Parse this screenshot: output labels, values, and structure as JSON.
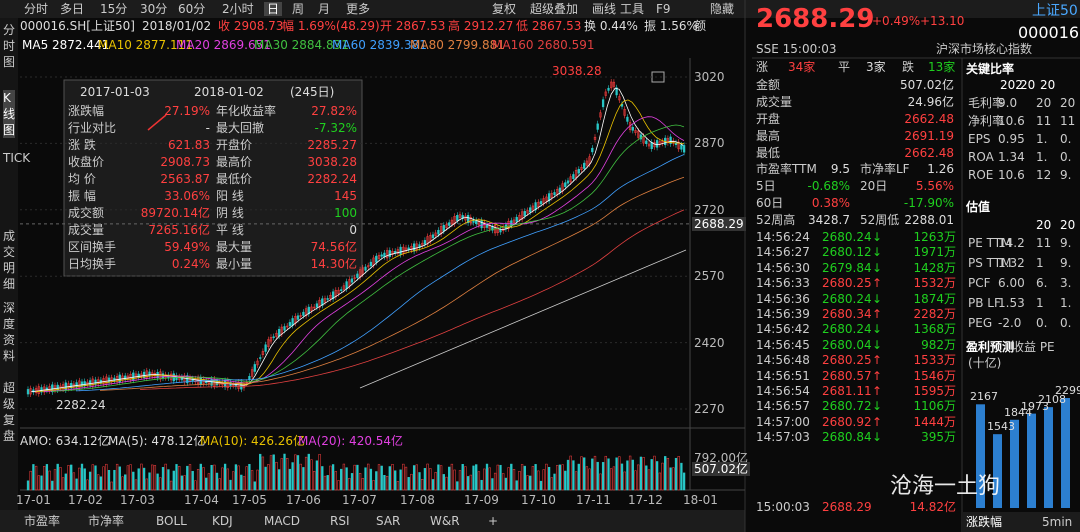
{
  "top_tabs": [
    "分时",
    "多日",
    "15分",
    "30分",
    "60分",
    "2小时",
    "日",
    "周",
    "月",
    "更多"
  ],
  "top_tools": [
    "复权",
    "超级叠加",
    "画线",
    "工具",
    "F9",
    "隐藏"
  ],
  "side_tabs": [
    "分时图",
    "K线图",
    "TICK",
    "成交明细",
    "深度资料",
    "超级复盘"
  ],
  "info": [
    "000016.SH[上证50]",
    "2018/01/02",
    "收 2908.73",
    "幅 1.69%(48.29)",
    "开 2867.53",
    "高 2912.27",
    "低 2867.53",
    "换 0.44%",
    "振 1.56%",
    "额"
  ],
  "ma": [
    "MA5 2872.441",
    "MA10 2877.111",
    "MA20 2869.651",
    "MA30 2884.831",
    "MA60 2839.381",
    "MA80 2799.881",
    "MA160 2680.591"
  ],
  "price_axis": {
    "ticks": [
      3020,
      2870,
      2720,
      2570,
      2420,
      2270
    ],
    "current": 2688.29,
    "high_label": "3038.28",
    "low_label": "2282.24"
  },
  "stats": {
    "start": "2017-01-03",
    "end": "2018-01-02",
    "days": "(245日)",
    "rows": [
      [
        "涨跌幅",
        "27.19%",
        "年化收益率",
        "27.82%"
      ],
      [
        "行业对比",
        "-",
        "最大回撤",
        "-7.32%"
      ],
      [
        "涨  跌",
        "621.83",
        "开盘价",
        "2285.27"
      ],
      [
        "收盘价",
        "2908.73",
        "最高价",
        "3038.28"
      ],
      [
        "均  价",
        "2563.87",
        "最低价",
        "2282.24"
      ],
      [
        "振  幅",
        "33.06%",
        "阳  线",
        "145"
      ],
      [
        "成交额",
        "89720.14亿",
        "阴  线",
        "100"
      ],
      [
        "成交量",
        "7265.16亿",
        "平  线",
        "0"
      ],
      [
        "区间换手",
        "59.49%",
        "最大量",
        "74.56亿"
      ],
      [
        "日均换手",
        "0.24%",
        "最小量",
        "14.30亿"
      ]
    ]
  },
  "amo": [
    "AMO: 634.12亿",
    "MA(5): 478.12亿",
    "MA(10): 426.26亿",
    "MA(20): 420.54亿"
  ],
  "vol_axis": [
    "792.00亿",
    "507.02亿"
  ],
  "x_labels": [
    "17-01",
    "17-02",
    "17-03",
    "17-04",
    "17-05",
    "17-06",
    "17-07",
    "17-08",
    "17-09",
    "17-10",
    "17-11",
    "17-12",
    "18-01"
  ],
  "bottom_tabs": [
    "市盈率",
    "市净率",
    "BOLL",
    "KDJ",
    "MACD",
    "RSI",
    "SAR",
    "W&R",
    "+"
  ],
  "quote": {
    "price": "2688.29",
    "pct": "+0.49%",
    "chg": "+13.10",
    "name": "上证50",
    "code": "000016",
    "time": "SSE 15:00:03",
    "desc": "沪深市场核心指数",
    "breadth": [
      "涨",
      "34家",
      "平",
      "3家",
      "跌",
      "13家"
    ],
    "rows": [
      [
        "金额",
        "507.02亿"
      ],
      [
        "成交量",
        "24.96亿"
      ],
      [
        "开盘",
        "2662.48"
      ],
      [
        "最高",
        "2691.19"
      ],
      [
        "最低",
        "2662.48"
      ]
    ],
    "pairs": [
      [
        "市盈率TTM",
        "9.5",
        "市净率LF",
        "1.26"
      ],
      [
        "5日",
        "-0.68%",
        "20日",
        "5.56%"
      ],
      [
        "60日",
        "0.38%",
        "",
        "-17.90%"
      ],
      [
        "52周高",
        "3428.7",
        "52周低",
        "2288.01"
      ]
    ]
  },
  "ticks_list": [
    [
      "14:56:24",
      "2680.24",
      "↓",
      "1263万"
    ],
    [
      "14:56:27",
      "2680.12",
      "↓",
      "1971万"
    ],
    [
      "14:56:30",
      "2679.84",
      "↓",
      "1428万"
    ],
    [
      "14:56:33",
      "2680.25",
      "↑",
      "1532万"
    ],
    [
      "14:56:36",
      "2680.24",
      "↓",
      "1874万"
    ],
    [
      "14:56:39",
      "2680.34",
      "↑",
      "2282万"
    ],
    [
      "14:56:42",
      "2680.24",
      "↓",
      "1368万"
    ],
    [
      "14:56:45",
      "2680.04",
      "↓",
      "982万"
    ],
    [
      "14:56:48",
      "2680.25",
      "↑",
      "1533万"
    ],
    [
      "14:56:51",
      "2680.57",
      "↑",
      "1546万"
    ],
    [
      "14:56:54",
      "2681.11",
      "↑",
      "1595万"
    ],
    [
      "14:56:57",
      "2680.72",
      "↓",
      "1106万"
    ],
    [
      "14:57:00",
      "2680.92",
      "↑",
      "1444万"
    ],
    [
      "14:57:03",
      "2680.84",
      "↓",
      "395万"
    ]
  ],
  "last_tick": [
    "15:00:03",
    "2688.29",
    "14.82亿"
  ],
  "ratios": {
    "title": "关键比率",
    "head": [
      "202",
      "20",
      "20"
    ],
    "rows": [
      [
        "毛利率",
        "9.0",
        "20",
        "20"
      ],
      [
        "净利率",
        "10.6",
        "11",
        "11"
      ],
      [
        "EPS",
        "0.95",
        "1.",
        "0."
      ],
      [
        "ROA",
        "1.34",
        "1.",
        "0."
      ],
      [
        "ROE",
        "10.6",
        "12",
        "9."
      ]
    ],
    "val_title": "估值",
    "val_head": [
      "20",
      "20"
    ],
    "val_rows": [
      [
        "PE TTM",
        "14.2",
        "11",
        "9."
      ],
      [
        "PS TTM",
        "1.32",
        "1",
        "9."
      ],
      [
        "PCF",
        "6.00",
        "6.",
        "3."
      ],
      [
        "PB LF",
        "1.53",
        "1",
        "1."
      ],
      [
        "PEG",
        "-2.0",
        "0.",
        "0."
      ]
    ],
    "forecast_title": "盈利预测",
    "forecast_unit": "(十亿)",
    "forecast_cols": "收益  PE",
    "forecast": [
      2167,
      1543,
      1844,
      1973,
      2108,
      2299
    ],
    "bottom": "涨跌幅",
    "interval": "5min"
  },
  "watermark": "沧海一土狗"
}
